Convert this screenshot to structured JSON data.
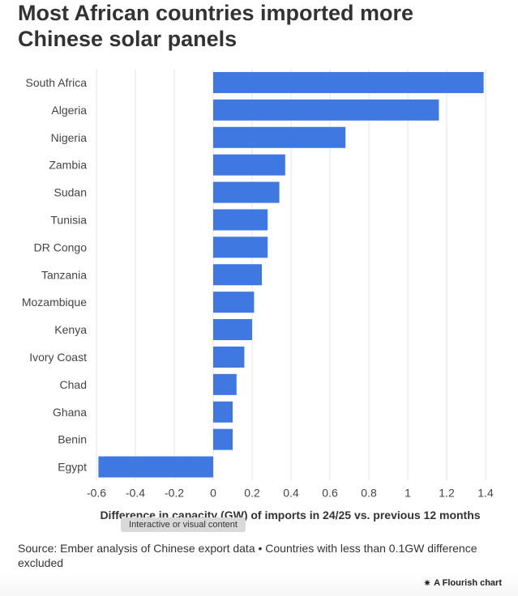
{
  "title": "Most African countries imported more Chinese solar panels",
  "tooltip": "Interactive or visual content",
  "source": "Source: Ember analysis of Chinese export data • Countries with less than 0.1GW difference excluded",
  "credit": {
    "icon": "flourish-star-icon",
    "label": "A Flourish chart"
  },
  "colors": {
    "bar": "#3f78e0",
    "grid": "#e6e6e6",
    "text": "#333333"
  },
  "chart_data": {
    "type": "bar",
    "orientation": "horizontal",
    "categories": [
      "South Africa",
      "Algeria",
      "Nigeria",
      "Zambia",
      "Sudan",
      "Tunisia",
      "DR Congo",
      "Tanzania",
      "Mozambique",
      "Kenya",
      "Ivory Coast",
      "Chad",
      "Ghana",
      "Benin",
      "Egypt"
    ],
    "values": [
      1.39,
      1.16,
      0.68,
      0.37,
      0.34,
      0.28,
      0.28,
      0.25,
      0.21,
      0.2,
      0.16,
      0.12,
      0.1,
      0.1,
      -0.59
    ],
    "xlim": [
      -0.6,
      1.4
    ],
    "xticks": [
      "-0.6",
      "-0.4",
      "-0.2",
      "0",
      "0.2",
      "0.4",
      "0.6",
      "0.8",
      "1",
      "1.2",
      "1.4"
    ],
    "xlabel": "Difference in capacity (GW) of imports in 24/25 vs. previous 12 months",
    "grid": true
  }
}
